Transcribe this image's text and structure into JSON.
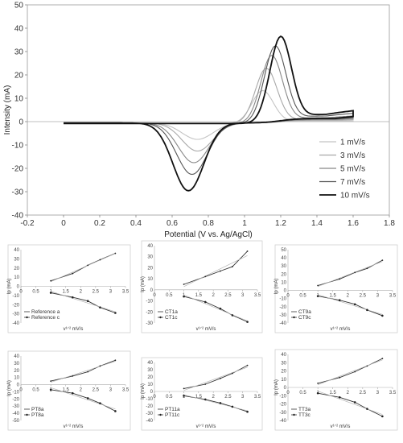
{
  "chart_data": [
    {
      "type": "line",
      "xlabel": "Potential (V vs. Ag/AgCl)",
      "ylabel": "Intensity (mA)",
      "xlim": [
        -0.2,
        1.8
      ],
      "ylim": [
        -40,
        50
      ],
      "xticks": [
        "-0.2",
        "0",
        "0.2",
        "0.4",
        "0.6",
        "0.8",
        "1",
        "1.2",
        "1.4",
        "1.6",
        "1.8"
      ],
      "yticks": [
        "-40",
        "-30",
        "-20",
        "-10",
        "0",
        "10",
        "20",
        "30",
        "40",
        "50"
      ],
      "grid": false,
      "legend_position": "bottom-right",
      "series": [
        {
          "name": "1 mV/s",
          "color": "#c4c4c4",
          "anodic_peak": [
            1.1,
            14
          ],
          "cathodic_peak": [
            0.74,
            -7
          ]
        },
        {
          "name": "3 mV/s",
          "color": "#a8a8a8",
          "anodic_peak": [
            1.12,
            23.5
          ],
          "cathodic_peak": [
            0.74,
            -12
          ]
        },
        {
          "name": "5 mV/s",
          "color": "#888888",
          "anodic_peak": [
            1.15,
            29
          ],
          "cathodic_peak": [
            0.72,
            -17
          ]
        },
        {
          "name": "7 mV/s",
          "color": "#555555",
          "anodic_peak": [
            1.17,
            33
          ],
          "cathodic_peak": [
            0.71,
            -22
          ]
        },
        {
          "name": "10 mV/s",
          "color": "#111111",
          "anodic_peak": [
            1.2,
            37
          ],
          "cathodic_peak": [
            0.69,
            -29
          ]
        }
      ]
    },
    {
      "type": "line",
      "xlabel": "v¹ᐟ² mV/s",
      "ylabel": "Ip (mA)",
      "xlim": [
        0,
        3.5
      ],
      "ylim": [
        -40,
        40
      ],
      "xticks": [
        "0",
        "0.5",
        "1",
        "1.5",
        "2",
        "2.5",
        "3",
        "3.5"
      ],
      "yticks": [
        "-40",
        "-30",
        "-20",
        "-10",
        "0",
        "10",
        "20",
        "30",
        "40"
      ],
      "x": [
        1,
        1.73,
        2.24,
        2.65,
        3.16
      ],
      "series": [
        {
          "name": "Reference a",
          "values": [
            6,
            14,
            23,
            29,
            36
          ]
        },
        {
          "name": "Reference c",
          "values": [
            -7,
            -12,
            -16,
            -23,
            -29
          ]
        }
      ]
    },
    {
      "type": "line",
      "xlabel": "v¹ᐟ² mV/s",
      "ylabel": "Ip (mA)",
      "xlim": [
        0,
        3.5
      ],
      "ylim": [
        -40,
        40
      ],
      "xticks": [
        "0",
        "0.5",
        "1",
        "1.5",
        "2",
        "2.5",
        "3",
        "3.5"
      ],
      "yticks": [
        "-30",
        "-20",
        "-10",
        "0",
        "10",
        "20",
        "30",
        "40"
      ],
      "x": [
        1,
        1.73,
        2.24,
        2.65,
        3.16
      ],
      "series": [
        {
          "name": "CT1a",
          "values": [
            5,
            12,
            17,
            21,
            35
          ]
        },
        {
          "name": "CT1c",
          "values": [
            -6,
            -11,
            -17,
            -23,
            -29
          ]
        }
      ]
    },
    {
      "type": "line",
      "xlabel": "v¹ᐟ² mV/s",
      "ylabel": "Ip (mA)",
      "xlim": [
        0,
        3.5
      ],
      "ylim": [
        -40,
        50
      ],
      "xticks": [
        "0",
        "0.5",
        "1",
        "1.5",
        "2",
        "2.5",
        "3",
        "3.5"
      ],
      "yticks": [
        "-40",
        "-30",
        "-20",
        "-10",
        "0",
        "10",
        "20",
        "30",
        "40",
        "50"
      ],
      "x": [
        1,
        1.73,
        2.24,
        2.65,
        3.16
      ],
      "series": [
        {
          "name": "CT9a",
          "values": [
            6,
            14,
            22,
            27,
            37
          ]
        },
        {
          "name": "CT9c",
          "values": [
            -7,
            -12,
            -17,
            -24,
            -31
          ]
        }
      ]
    },
    {
      "type": "line",
      "xlabel": "v¹ᐟ² mV/s",
      "ylabel": "Ip (mA)",
      "xlim": [
        0,
        3.5
      ],
      "ylim": [
        -50,
        40
      ],
      "xticks": [
        "0",
        "0.5",
        "1",
        "1.5",
        "2",
        "2.5",
        "3",
        "3.5"
      ],
      "yticks": [
        "-50",
        "-40",
        "-30",
        "-20",
        "-10",
        "0",
        "10",
        "20",
        "30",
        "40"
      ],
      "x": [
        1,
        1.73,
        2.24,
        2.65,
        3.16
      ],
      "series": [
        {
          "name": "PT8a",
          "values": [
            5,
            12,
            18,
            26,
            34
          ]
        },
        {
          "name": "PT8a",
          "values": [
            -7,
            -12,
            -19,
            -26,
            -37
          ]
        }
      ]
    },
    {
      "type": "line",
      "xlabel": "v¹ᐟ² mV/s",
      "ylabel": "Ip (mA)",
      "xlim": [
        0,
        3.5
      ],
      "ylim": [
        -40,
        40
      ],
      "xticks": [
        "0",
        "0.5",
        "1",
        "1.5",
        "2",
        "2.5",
        "3",
        "3.5"
      ],
      "yticks": [
        "-40",
        "-30",
        "-20",
        "-10",
        "0",
        "10",
        "20",
        "30",
        "40"
      ],
      "x": [
        1,
        1.73,
        2.24,
        2.65,
        3.16
      ],
      "series": [
        {
          "name": "PT11a",
          "values": [
            4,
            10,
            18,
            25,
            36
          ]
        },
        {
          "name": "PT11c",
          "values": [
            -6,
            -11,
            -16,
            -21,
            -28
          ]
        }
      ]
    },
    {
      "type": "line",
      "xlabel": "v¹ᐟ² mV/s",
      "ylabel": "Ip (mA)",
      "xlim": [
        0,
        3.5
      ],
      "ylim": [
        -40,
        40
      ],
      "xticks": [
        "0",
        "0.5",
        "1",
        "1.5",
        "2",
        "2.5",
        "3",
        "3.5"
      ],
      "yticks": [
        "-40",
        "-30",
        "-20",
        "-10",
        "0",
        "10",
        "20",
        "30",
        "40"
      ],
      "x": [
        1,
        1.73,
        2.24,
        2.65,
        3.16
      ],
      "series": [
        {
          "name": "TT3a",
          "values": [
            5,
            12,
            19,
            26,
            35
          ]
        },
        {
          "name": "TT3c",
          "values": [
            -7,
            -12,
            -18,
            -26,
            -35
          ]
        }
      ]
    }
  ]
}
